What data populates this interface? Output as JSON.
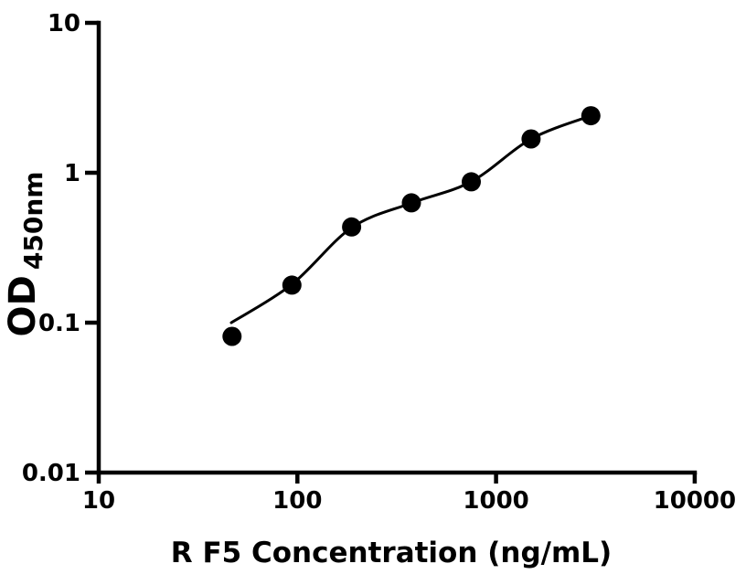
{
  "figure": {
    "background_color": "#ffffff",
    "foreground_color": "#000000"
  },
  "chart_data": {
    "type": "scatter",
    "title": "",
    "xlabel": "R F5 Concentration (ng/mL)",
    "ylabel": {
      "main": "OD",
      "subscript": "450nm"
    },
    "x_scale": "log",
    "y_scale": "log",
    "xlim": [
      10,
      10000
    ],
    "ylim": [
      0.01,
      10
    ],
    "grid": false,
    "legend": null,
    "x_ticks": [
      {
        "value": 10,
        "label": "10"
      },
      {
        "value": 100,
        "label": "100"
      },
      {
        "value": 1000,
        "label": "1000"
      },
      {
        "value": 10000,
        "label": "10000"
      }
    ],
    "y_ticks": [
      {
        "value": 0.01,
        "label": "0.01"
      },
      {
        "value": 0.1,
        "label": "0.1"
      },
      {
        "value": 1,
        "label": "1"
      },
      {
        "value": 10,
        "label": "10"
      }
    ],
    "series": [
      {
        "name": "standard-curve-points",
        "marker": "circle",
        "color": "#000000",
        "marker_radius": 10.5,
        "points": [
          {
            "x": 46.9,
            "y": 0.081
          },
          {
            "x": 93.8,
            "y": 0.178
          },
          {
            "x": 187.5,
            "y": 0.435
          },
          {
            "x": 375,
            "y": 0.63
          },
          {
            "x": 750,
            "y": 0.87
          },
          {
            "x": 1500,
            "y": 1.68
          },
          {
            "x": 3000,
            "y": 2.4
          }
        ]
      }
    ],
    "fit_curve": {
      "name": "fitted-curve",
      "color": "#000000",
      "line_width": 3,
      "points": [
        {
          "x": 46.5,
          "y": 0.1
        },
        {
          "x": 93.8,
          "y": 0.18
        },
        {
          "x": 187.5,
          "y": 0.43
        },
        {
          "x": 375,
          "y": 0.628
        },
        {
          "x": 750,
          "y": 0.873
        },
        {
          "x": 1500,
          "y": 1.68
        },
        {
          "x": 3000,
          "y": 2.4
        }
      ]
    }
  }
}
